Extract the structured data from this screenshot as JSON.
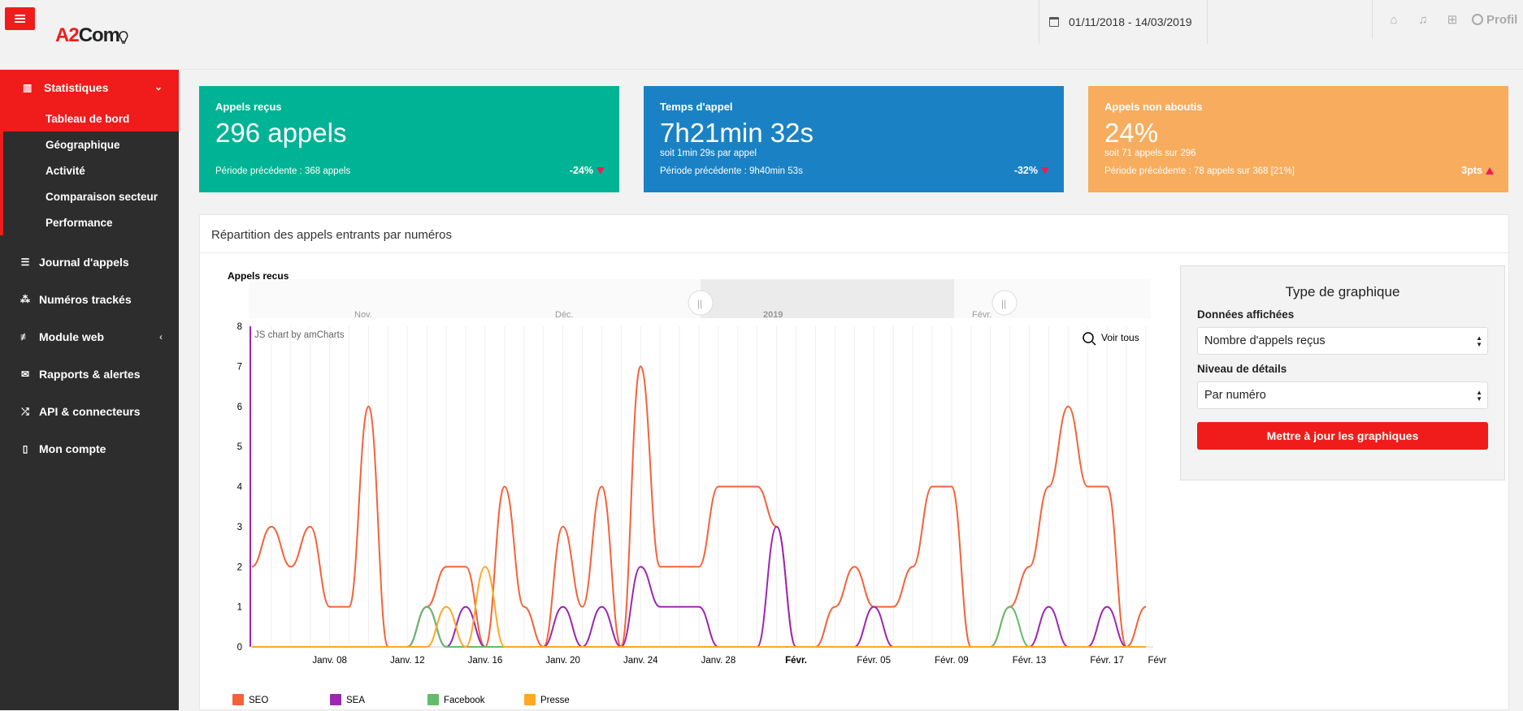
{
  "topbar": {
    "logo_a2": "A2",
    "logo_com": "Com",
    "date_range": "01/11/2018 - 14/03/2019",
    "profile_label": "Profil"
  },
  "sidebar": {
    "group": {
      "label": "Statistiques",
      "items": [
        "Tableau de bord",
        "Géographique",
        "Activité",
        "Comparaison secteur",
        "Performance"
      ]
    },
    "items": [
      {
        "label": "Journal d'appels",
        "icon": "list-icon"
      },
      {
        "label": "Numéros trackés",
        "icon": "sitemap-icon"
      },
      {
        "label": "Module web",
        "icon": "sliders-icon"
      },
      {
        "label": "Rapports & alertes",
        "icon": "envelope-icon"
      },
      {
        "label": "API & connecteurs",
        "icon": "shuffle-icon"
      },
      {
        "label": "Mon compte",
        "icon": "building-icon"
      }
    ]
  },
  "cards": [
    {
      "title": "Appels reçus",
      "value": "296 appels",
      "sub": "",
      "prev": "Période précédente : 368 appels",
      "delta": "-24%",
      "trend": "down",
      "color": "#00b394"
    },
    {
      "title": "Temps d'appel",
      "value": "7h21min 32s",
      "sub": "soit 1min 29s par appel",
      "prev": "Période précédente : 9h40min 53s",
      "delta": "-32%",
      "trend": "down",
      "color": "#1a82c4"
    },
    {
      "title": "Appels non aboutis",
      "value": "24%",
      "sub": "soit 71 appels sur 296",
      "prev": "Période précédente : 78 appels sur 368 [21%]",
      "delta": "3pts",
      "trend": "up",
      "color": "#f7ac5e"
    }
  ],
  "panel": {
    "title": "Répartition des appels entrants par numéros",
    "chart_title": "Appels reçus",
    "credit": "JS chart by amCharts",
    "zoom_label": "Voir tous"
  },
  "settings": {
    "title": "Type de graphique",
    "data_label": "Données affichées",
    "data_value": "Nombre d'appels reçus",
    "detail_label": "Niveau de détails",
    "detail_value": "Par numéro",
    "button": "Mettre à jour les graphiques"
  },
  "chart_data": {
    "type": "line",
    "title": "Appels reçus",
    "ylim": [
      0,
      8
    ],
    "y_ticks": [
      0,
      1,
      2,
      3,
      4,
      5,
      6,
      7,
      8
    ],
    "x_tick_labels": [
      "Janv. 08",
      "Janv. 12",
      "Janv. 16",
      "Janv. 20",
      "Janv. 24",
      "Janv. 28",
      "Févr.",
      "Févr. 05",
      "Févr. 09",
      "Févr. 13",
      "Févr. 17",
      "Févr"
    ],
    "navigator_labels": [
      "Nov.",
      "Déc.",
      "2019",
      "Févr."
    ],
    "x": [
      "Janv. 04",
      "Janv. 05",
      "Janv. 06",
      "Janv. 07",
      "Janv. 08",
      "Janv. 09",
      "Janv. 10",
      "Janv. 11",
      "Janv. 12",
      "Janv. 13",
      "Janv. 14",
      "Janv. 15",
      "Janv. 16",
      "Janv. 17",
      "Janv. 18",
      "Janv. 19",
      "Janv. 20",
      "Janv. 21",
      "Janv. 22",
      "Janv. 23",
      "Janv. 24",
      "Janv. 25",
      "Janv. 26",
      "Janv. 27",
      "Janv. 28",
      "Janv. 29",
      "Janv. 30",
      "Janv. 31",
      "Févr. 01",
      "Févr. 02",
      "Févr. 03",
      "Févr. 04",
      "Févr. 05",
      "Févr. 06",
      "Févr. 07",
      "Févr. 08",
      "Févr. 09",
      "Févr. 10",
      "Févr. 11",
      "Févr. 12",
      "Févr. 13",
      "Févr. 14",
      "Févr. 15",
      "Févr. 16",
      "Févr. 17",
      "Févr. 18",
      "Févr. 19"
    ],
    "series": [
      {
        "name": "SEO",
        "color": "#f4623a",
        "values": [
          2,
          3,
          2,
          3,
          1,
          1,
          6,
          0,
          0,
          1,
          2,
          2,
          0,
          4,
          1,
          0,
          3,
          1,
          4,
          0,
          7,
          2,
          2,
          2,
          4,
          4,
          4,
          3,
          0,
          0,
          1,
          2,
          1,
          1,
          2,
          4,
          4,
          0,
          0,
          1,
          2,
          4,
          6,
          4,
          4,
          0,
          1
        ]
      },
      {
        "name": "SEA",
        "color": "#9c27b0",
        "values": [
          0,
          0,
          0,
          0,
          0,
          0,
          0,
          0,
          0,
          1,
          0,
          1,
          0,
          0,
          0,
          0,
          1,
          0,
          1,
          0,
          2,
          1,
          1,
          1,
          0,
          0,
          0,
          3,
          0,
          0,
          0,
          0,
          1,
          0,
          0,
          0,
          0,
          0,
          0,
          0,
          0,
          1,
          0,
          0,
          1,
          0,
          0
        ]
      },
      {
        "name": "Facebook",
        "color": "#66bb6a",
        "values": [
          0,
          0,
          0,
          0,
          0,
          0,
          0,
          0,
          0,
          1,
          0,
          0,
          0,
          0,
          0,
          0,
          0,
          0,
          0,
          0,
          0,
          0,
          0,
          0,
          0,
          0,
          0,
          0,
          0,
          0,
          0,
          0,
          0,
          0,
          0,
          0,
          0,
          0,
          0,
          1,
          0,
          0,
          0,
          0,
          0,
          0,
          0
        ]
      },
      {
        "name": "Presse",
        "color": "#ffa726",
        "values": [
          0,
          0,
          0,
          0,
          0,
          0,
          0,
          0,
          0,
          0,
          1,
          0,
          2,
          0,
          0,
          0,
          0,
          0,
          0,
          0,
          0,
          0,
          0,
          0,
          0,
          0,
          0,
          0,
          0,
          0,
          0,
          0,
          0,
          0,
          0,
          0,
          0,
          0,
          0,
          0,
          0,
          0,
          0,
          0,
          0,
          0,
          0
        ]
      }
    ]
  }
}
